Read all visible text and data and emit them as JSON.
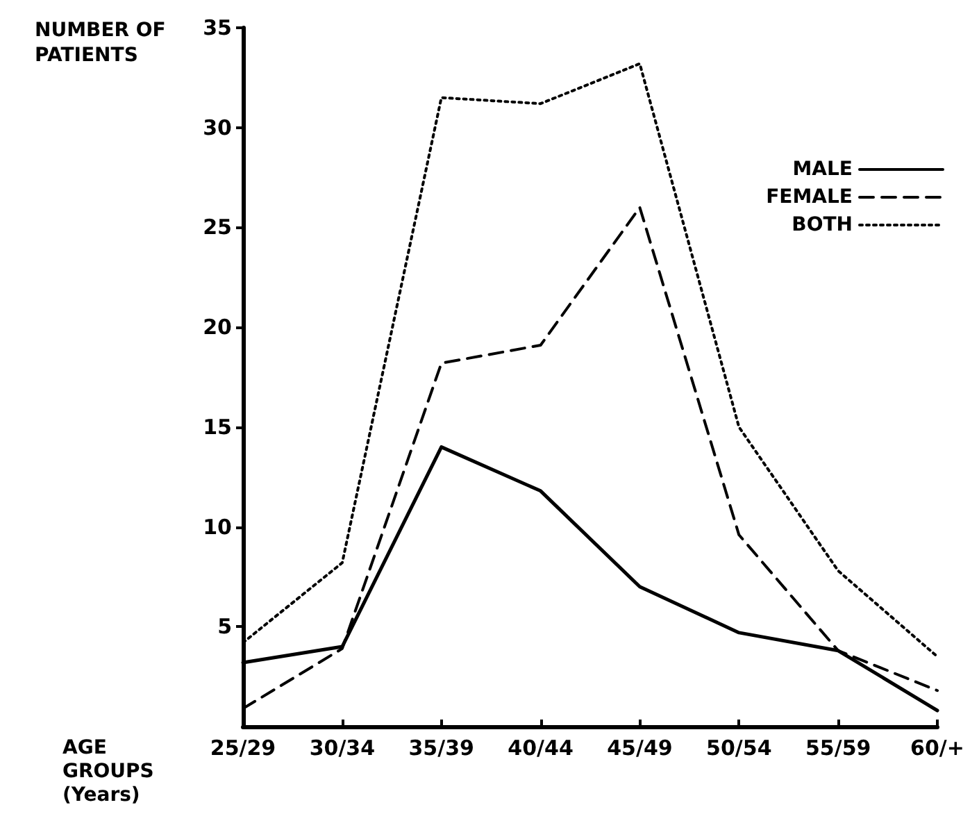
{
  "chart_data": {
    "type": "line",
    "xlabel": "AGE GROUPS (Years)",
    "ylabel": "NUMBER OF PATIENTS",
    "categories": [
      "25/29",
      "30/34",
      "35/39",
      "40/44",
      "45/49",
      "50/54",
      "55/59",
      "60/+"
    ],
    "series": [
      {
        "name": "MALE",
        "color": "#000000",
        "line_style": "solid",
        "values": [
          3.2,
          4.0,
          14.0,
          11.8,
          7.0,
          4.7,
          3.8,
          0.8
        ]
      },
      {
        "name": "FEMALE",
        "color": "#000000",
        "line_style": "dashed",
        "values": [
          0.9,
          3.9,
          18.2,
          19.1,
          26.0,
          9.6,
          3.8,
          1.8
        ]
      },
      {
        "name": "BOTH",
        "color": "#000000",
        "line_style": "dotted",
        "values": [
          4.2,
          8.2,
          31.5,
          31.2,
          33.2,
          15.0,
          7.8,
          3.5
        ]
      }
    ],
    "ylim": [
      0,
      35
    ],
    "yticks": [
      5,
      10,
      15,
      20,
      25,
      30,
      35
    ],
    "grid": false,
    "legend": "top right",
    "marker": "none"
  }
}
